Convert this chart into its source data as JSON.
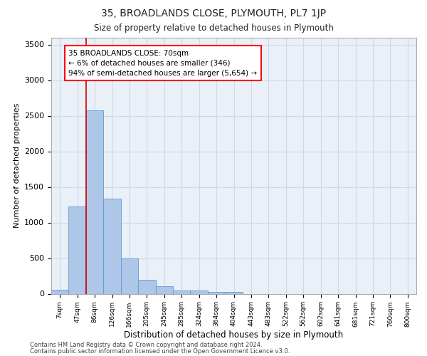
{
  "title": "35, BROADLANDS CLOSE, PLYMOUTH, PL7 1JP",
  "subtitle": "Size of property relative to detached houses in Plymouth",
  "xlabel": "Distribution of detached houses by size in Plymouth",
  "ylabel": "Number of detached properties",
  "bar_labels": [
    "7sqm",
    "47sqm",
    "86sqm",
    "126sqm",
    "166sqm",
    "205sqm",
    "245sqm",
    "285sqm",
    "324sqm",
    "364sqm",
    "404sqm",
    "443sqm",
    "483sqm",
    "522sqm",
    "562sqm",
    "602sqm",
    "641sqm",
    "681sqm",
    "721sqm",
    "760sqm",
    "800sqm"
  ],
  "bar_values": [
    55,
    1230,
    2580,
    1340,
    500,
    200,
    110,
    50,
    45,
    30,
    25,
    0,
    0,
    0,
    0,
    0,
    0,
    0,
    0,
    0,
    0
  ],
  "bar_color": "#aec6e8",
  "bar_edge_color": "#5b9bd5",
  "grid_color": "#d0d8e8",
  "background_color": "#eaf0f8",
  "vline_color": "#cc0000",
  "annotation_text": "35 BROADLANDS CLOSE: 70sqm\n← 6% of detached houses are smaller (346)\n94% of semi-detached houses are larger (5,654) →",
  "ylim": [
    0,
    3600
  ],
  "yticks": [
    0,
    500,
    1000,
    1500,
    2000,
    2500,
    3000,
    3500
  ],
  "footer_line1": "Contains HM Land Registry data © Crown copyright and database right 2024.",
  "footer_line2": "Contains public sector information licensed under the Open Government Licence v3.0."
}
